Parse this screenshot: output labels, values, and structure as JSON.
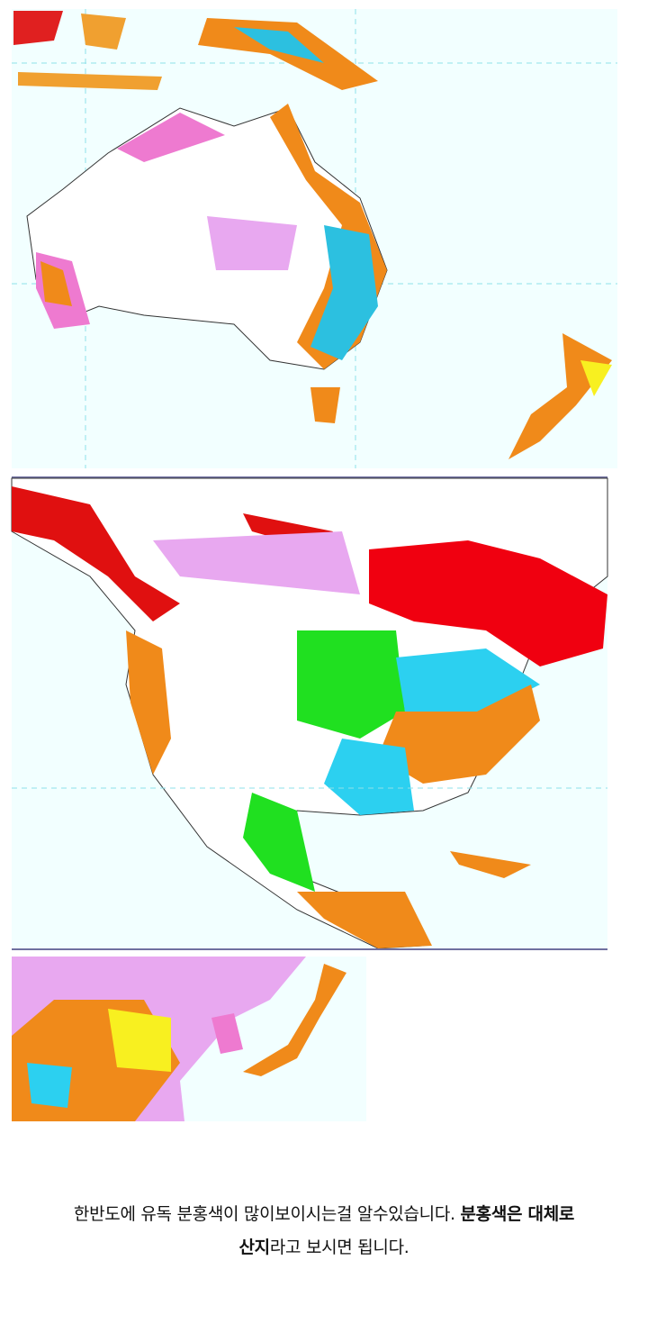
{
  "caption": {
    "lines": [
      [
        {
          "text": "한반도에 유독 분홍색이 많이보이시는걸 알수있습니다. ",
          "bold": false
        },
        {
          "text": "분홍색은 대체로",
          "bold": true
        }
      ],
      [
        {
          "text": "산지",
          "bold": true
        },
        {
          "text": "라고 보시면 됩니다.",
          "bold": false
        }
      ]
    ]
  }
}
